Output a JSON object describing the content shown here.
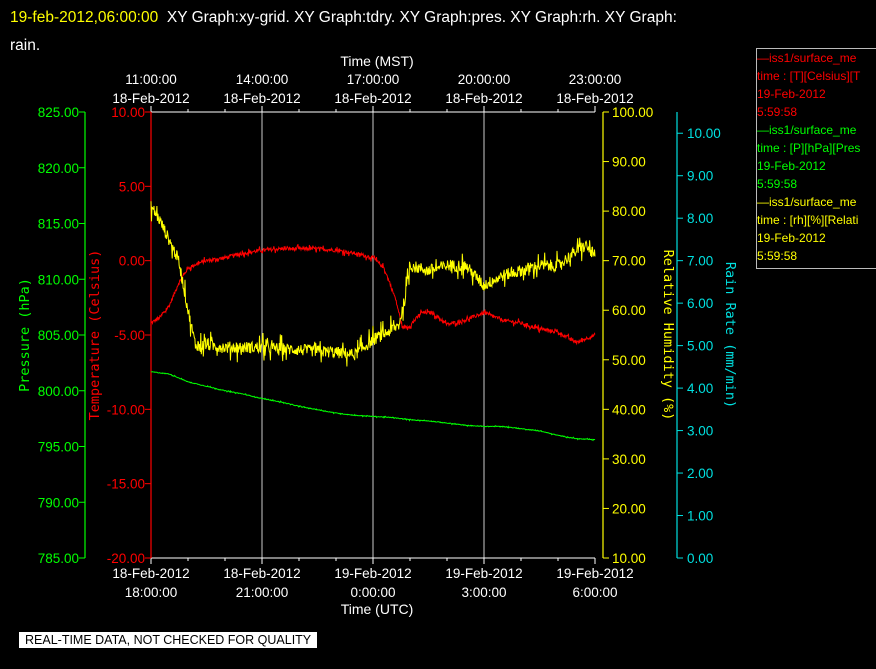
{
  "header": {
    "timestamp": "19-feb-2012,06:00:00",
    "graphs": "XY Graph:xy-grid.  XY Graph:tdry.  XY Graph:pres.  XY Graph:rh.  XY Graph:",
    "wrap": "rain."
  },
  "colors": {
    "temperature": "#ff0000",
    "pressure": "#00ff00",
    "humidity": "#ffff00",
    "rain": "#00e0e0",
    "grid": "#ffffff",
    "text": "#ffffff"
  },
  "legend": {
    "entries": [
      {
        "name": "—iss1/surface_me",
        "units": "time : [T][Celsius][T",
        "date": "19-Feb-2012",
        "time": "5:59:58",
        "color": "#ff0000"
      },
      {
        "name": "—iss1/surface_me",
        "units": "time : [P][hPa][Pres",
        "date": "19-Feb-2012",
        "time": "5:59:58",
        "color": "#00ff00"
      },
      {
        "name": "—iss1/surface_me",
        "units": "time : [rh][%][Relati",
        "date": "19-Feb-2012",
        "time": "5:59:58",
        "color": "#ffff00"
      }
    ]
  },
  "footer": {
    "quality_note": "REAL-TIME DATA, NOT CHECKED FOR QUALITY"
  },
  "chart_data": {
    "type": "line",
    "grid": true,
    "x_top_title": "Time (MST)",
    "x_bottom_title": "Time (UTC)",
    "x_range_hours_utc": [
      18,
      30
    ],
    "x_ticks_bottom": [
      {
        "h": 18,
        "date": "18-Feb-2012",
        "time": "18:00:00"
      },
      {
        "h": 21,
        "date": "18-Feb-2012",
        "time": "21:00:00"
      },
      {
        "h": 24,
        "date": "19-Feb-2012",
        "time": "0:00:00"
      },
      {
        "h": 27,
        "date": "19-Feb-2012",
        "time": "3:00:00"
      },
      {
        "h": 30,
        "date": "19-Feb-2012",
        "time": "6:00:00"
      }
    ],
    "x_ticks_top": [
      {
        "h": 18,
        "time": "11:00:00",
        "date": "18-Feb-2012"
      },
      {
        "h": 21,
        "time": "14:00:00",
        "date": "18-Feb-2012"
      },
      {
        "h": 24,
        "time": "17:00:00",
        "date": "18-Feb-2012"
      },
      {
        "h": 27,
        "time": "20:00:00",
        "date": "18-Feb-2012"
      },
      {
        "h": 30,
        "time": "23:00:00",
        "date": "18-Feb-2012"
      }
    ],
    "axes": {
      "pressure": {
        "label": "Pressure (hPa)",
        "range": [
          785,
          825
        ],
        "ticks": [
          "785.00",
          "790.00",
          "795.00",
          "800.00",
          "805.00",
          "810.00",
          "815.00",
          "820.00",
          "825.00"
        ]
      },
      "temperature": {
        "label": "Temperature (Celsius)",
        "range": [
          -20,
          10
        ],
        "ticks": [
          "-20.00",
          "-15.00",
          "-10.00",
          "-5.00",
          "0.00",
          "5.00",
          "10.00"
        ]
      },
      "humidity": {
        "label": "Relative Humidity (%)",
        "range": [
          10,
          100
        ],
        "ticks": [
          "10.00",
          "20.00",
          "30.00",
          "40.00",
          "50.00",
          "60.00",
          "70.00",
          "80.00",
          "90.00",
          "100.00"
        ]
      },
      "rain": {
        "label": "Rain Rate (mm/min)",
        "range": [
          0,
          10.5
        ],
        "ticks": [
          "0.00",
          "1.00",
          "2.00",
          "3.00",
          "4.00",
          "5.00",
          "6.00",
          "7.00",
          "8.00",
          "9.00",
          "10.00"
        ]
      }
    },
    "series": [
      {
        "name": "Temperature",
        "axis": "temperature",
        "color": "#ff0000",
        "noise": 0.12,
        "points": [
          [
            18,
            -4.2
          ],
          [
            18.25,
            -3.8
          ],
          [
            18.5,
            -3.0
          ],
          [
            18.75,
            -1.5
          ],
          [
            19,
            -0.5
          ],
          [
            19.25,
            -0.2
          ],
          [
            19.5,
            0.0
          ],
          [
            20,
            0.2
          ],
          [
            20.5,
            0.5
          ],
          [
            21,
            0.7
          ],
          [
            21.5,
            0.8
          ],
          [
            22,
            0.8
          ],
          [
            22.5,
            0.8
          ],
          [
            23,
            0.7
          ],
          [
            23.5,
            0.5
          ],
          [
            24,
            0.2
          ],
          [
            24.3,
            -0.5
          ],
          [
            24.6,
            -2.5
          ],
          [
            24.8,
            -4.5
          ],
          [
            25,
            -4.4
          ],
          [
            25.3,
            -3.5
          ],
          [
            25.6,
            -3.5
          ],
          [
            26,
            -4.3
          ],
          [
            26.5,
            -4.0
          ],
          [
            27,
            -3.5
          ],
          [
            27.5,
            -4.0
          ],
          [
            28,
            -4.2
          ],
          [
            28.5,
            -4.6
          ],
          [
            29,
            -4.8
          ],
          [
            29.5,
            -5.5
          ],
          [
            30,
            -5.0
          ]
        ]
      },
      {
        "name": "Relative Humidity",
        "axis": "humidity",
        "color": "#ffff00",
        "noise": 1.2,
        "points": [
          [
            18,
            81
          ],
          [
            18.25,
            78
          ],
          [
            18.5,
            74
          ],
          [
            18.75,
            70
          ],
          [
            19,
            60
          ],
          [
            19.2,
            53
          ],
          [
            19.5,
            53
          ],
          [
            20,
            52.5
          ],
          [
            21,
            52.5
          ],
          [
            22,
            52
          ],
          [
            23,
            51.5
          ],
          [
            23.5,
            51
          ],
          [
            24,
            54
          ],
          [
            24.25,
            55
          ],
          [
            24.5,
            56
          ],
          [
            24.7,
            57
          ],
          [
            24.85,
            62
          ],
          [
            25,
            69
          ],
          [
            25.5,
            68
          ],
          [
            26,
            69
          ],
          [
            26.5,
            69
          ],
          [
            27,
            65
          ],
          [
            27.5,
            67
          ],
          [
            28,
            68
          ],
          [
            28.5,
            69
          ],
          [
            29,
            69
          ],
          [
            29.5,
            72
          ],
          [
            29.75,
            73
          ],
          [
            30,
            71
          ]
        ]
      },
      {
        "name": "Pressure",
        "axis": "pressure",
        "color": "#00ff00",
        "noise": 0.03,
        "points": [
          [
            18,
            801.7
          ],
          [
            18.5,
            801.5
          ],
          [
            19,
            800.8
          ],
          [
            19.5,
            800.4
          ],
          [
            20,
            800.0
          ],
          [
            20.5,
            799.7
          ],
          [
            21,
            799.3
          ],
          [
            21.5,
            799.0
          ],
          [
            22,
            798.6
          ],
          [
            22.5,
            798.3
          ],
          [
            23,
            798.0
          ],
          [
            23.5,
            797.8
          ],
          [
            24,
            797.7
          ],
          [
            24.5,
            797.6
          ],
          [
            25,
            797.4
          ],
          [
            25.5,
            797.3
          ],
          [
            26,
            797.1
          ],
          [
            26.5,
            796.9
          ],
          [
            27,
            796.8
          ],
          [
            27.5,
            796.8
          ],
          [
            28,
            796.6
          ],
          [
            28.5,
            796.4
          ],
          [
            29,
            796.0
          ],
          [
            29.5,
            795.7
          ],
          [
            30,
            795.6
          ]
        ]
      }
    ]
  }
}
